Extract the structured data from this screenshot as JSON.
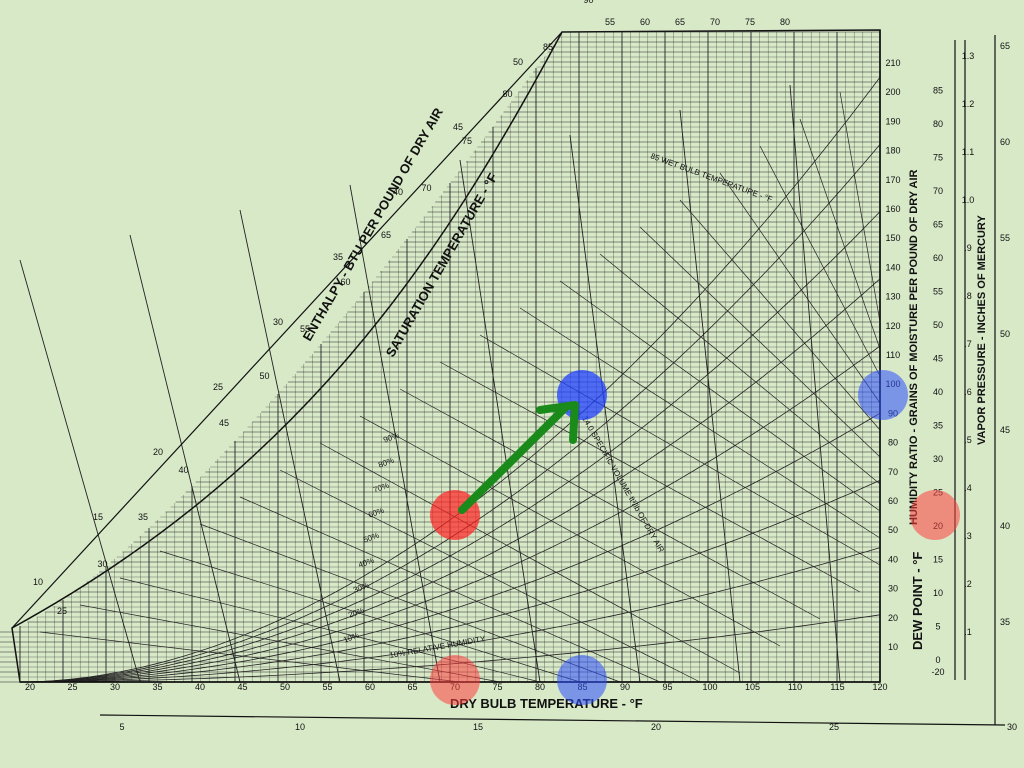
{
  "titles": {
    "enthalpy": "ENTHALPY - BTU PER POUND OF DRY AIR",
    "saturation": "SATURATION TEMPERATURE - °F",
    "dry_bulb": "DRY BULB TEMPERATURE - °F",
    "humidity_ratio": "HUMIDITY RATIO - GRAINS OF MOISTURE PER POUND OF DRY AIR",
    "dew_point": "DEW POINT - °F",
    "vapor_pressure": "VAPOR PRESSURE - INCHES OF MERCURY",
    "wet_bulb_label": "85 WET BULB TEMPERATURE - °F",
    "specific_volume_label": "14.0 SPECIFIC VOLUME ft³/lb OF DRY AIR",
    "rh_label": "10% RELATIVE HUMIDITY"
  },
  "dry_bulb_ticks": [
    "20",
    "25",
    "30",
    "35",
    "40",
    "45",
    "50",
    "55",
    "60",
    "65",
    "70",
    "75",
    "80",
    "85",
    "90",
    "95",
    "100",
    "105",
    "110",
    "115",
    "120"
  ],
  "humidity_ticks": [
    "10",
    "20",
    "30",
    "40",
    "50",
    "60",
    "70",
    "80",
    "90",
    "100",
    "110",
    "120",
    "130",
    "140",
    "150",
    "160",
    "170",
    "180",
    "190",
    "200",
    "210"
  ],
  "dew_ticks": [
    "-20",
    "0",
    "5",
    "10",
    "15",
    "20",
    "25",
    "30",
    "35",
    "40",
    "45",
    "50",
    "55",
    "60",
    "65",
    "70",
    "75",
    "80",
    "85"
  ],
  "vapor_ticks": [
    ".1",
    ".2",
    ".3",
    ".4",
    ".5",
    ".6",
    ".7",
    ".8",
    ".9",
    "1.0",
    "1.1",
    "1.2",
    "1.3"
  ],
  "far_right_ticks": [
    "35",
    "40",
    "45",
    "50",
    "55",
    "60",
    "65"
  ],
  "bottom_scale_ticks": [
    "5",
    "10",
    "15",
    "20",
    "25",
    "30"
  ],
  "enthalpy_ticks": [
    "10",
    "15",
    "20",
    "25",
    "30",
    "35",
    "40",
    "45",
    "50"
  ],
  "saturation_ticks": [
    "25",
    "30",
    "35",
    "40",
    "45",
    "50",
    "55",
    "60",
    "65",
    "70",
    "75",
    "80",
    "85",
    "90"
  ],
  "rh_percent_labels": [
    "90%",
    "80%",
    "70%",
    "60%",
    "50%",
    "40%",
    "30%",
    "20%",
    "10%"
  ],
  "wet_bulb_ticks": [
    "55",
    "60",
    "65",
    "70",
    "75",
    "80"
  ],
  "markers": {
    "state_start": {
      "color": "#ff2020",
      "label": "start state (≈70°F, 50% RH)"
    },
    "state_end": {
      "color": "#2040ff",
      "label": "end state (≈85°F)"
    },
    "arrow_color": "#1a8a1a"
  },
  "colors": {
    "background": "#d8e9c8",
    "lines": "#1a1a1a"
  }
}
